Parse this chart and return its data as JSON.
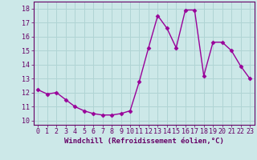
{
  "x": [
    0,
    1,
    2,
    3,
    4,
    5,
    6,
    7,
    8,
    9,
    10,
    11,
    12,
    13,
    14,
    15,
    16,
    17,
    18,
    19,
    20,
    21,
    22,
    23
  ],
  "y": [
    12.2,
    11.9,
    12.0,
    11.5,
    11.0,
    10.7,
    10.5,
    10.4,
    10.4,
    10.5,
    10.7,
    12.8,
    15.2,
    17.5,
    16.6,
    15.2,
    17.9,
    17.9,
    13.2,
    15.6,
    15.6,
    15.0,
    13.9,
    13.0
  ],
  "line_color": "#990099",
  "marker": "D",
  "marker_size": 2.5,
  "linewidth": 1.0,
  "bg_color": "#cce8e8",
  "grid_color": "#b0d4d4",
  "xlabel": "Windchill (Refroidissement éolien,°C)",
  "xlabel_fontsize": 6.5,
  "xlim": [
    -0.5,
    23.5
  ],
  "ylim": [
    9.7,
    18.5
  ],
  "yticks": [
    10,
    11,
    12,
    13,
    14,
    15,
    16,
    17,
    18
  ],
  "xticks": [
    0,
    1,
    2,
    3,
    4,
    5,
    6,
    7,
    8,
    9,
    10,
    11,
    12,
    13,
    14,
    15,
    16,
    17,
    18,
    19,
    20,
    21,
    22,
    23
  ],
  "tick_fontsize": 6.0,
  "tick_color": "#660066",
  "spine_color": "#660066",
  "label_color": "#660066"
}
